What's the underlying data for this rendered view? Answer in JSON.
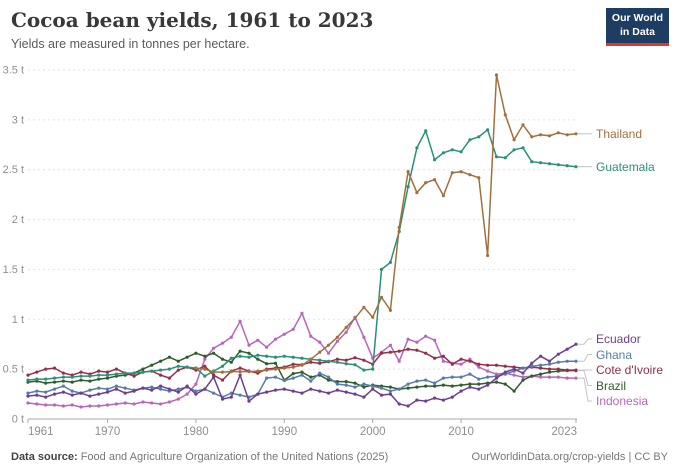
{
  "header": {
    "title": "Cocoa bean yields, 1961 to 2023",
    "subtitle": "Yields are measured in tonnes per hectare."
  },
  "logo": {
    "line1": "Our World",
    "line2": "in Data",
    "bg": "#1d3d63",
    "accent": "#dc392a"
  },
  "footer": {
    "source_label": "Data source:",
    "source_text": " Food and Agriculture Organization of the United Nations (2025)",
    "credit_link": "OurWorldinData.org/crop-yields",
    "credit_rest": " | CC BY"
  },
  "chart_data": {
    "type": "line",
    "title": "Cocoa bean yields, 1961 to 2023",
    "ylabel": "tonnes per hectare",
    "unit": "t",
    "xlim": [
      1961,
      2023
    ],
    "ylim": [
      0,
      3.5
    ],
    "grid": "horizontal-dashed",
    "legend_position": "right",
    "x_ticks": [
      1961,
      1970,
      1980,
      1990,
      2000,
      2010,
      2023
    ],
    "y_ticks": [
      {
        "value": 0,
        "label": "0 t"
      },
      {
        "value": 0.5,
        "label": "0.5 t"
      },
      {
        "value": 1,
        "label": "1 t"
      },
      {
        "value": 1.5,
        "label": "1.5 t"
      },
      {
        "value": 2,
        "label": "2 t"
      },
      {
        "value": 2.5,
        "label": "2.5 t"
      },
      {
        "value": 3,
        "label": "3 t"
      },
      {
        "value": 3.5,
        "label": "3.5 t"
      }
    ],
    "series": [
      {
        "name": "Thailand",
        "color": "#a2703c",
        "start_year": 1980,
        "values": [
          0.51,
          0.5,
          0.47,
          0.47,
          0.475,
          0.475,
          0.475,
          0.48,
          0.49,
          0.5,
          0.51,
          0.52,
          0.54,
          0.6,
          0.67,
          0.74,
          0.82,
          0.92,
          1.01,
          1.12,
          1.02,
          1.22,
          1.09,
          1.92,
          2.48,
          2.27,
          2.37,
          2.4,
          2.24,
          2.47,
          2.48,
          2.45,
          2.42,
          1.64,
          3.45,
          3.05,
          2.8,
          2.95,
          2.83,
          2.85,
          2.84,
          2.87,
          2.85,
          2.86
        ]
      },
      {
        "name": "Guatemala",
        "color": "#2a9179",
        "start_year": 1961,
        "values": [
          0.39,
          0.4,
          0.4,
          0.41,
          0.42,
          0.42,
          0.43,
          0.43,
          0.44,
          0.44,
          0.45,
          0.46,
          0.46,
          0.47,
          0.48,
          0.49,
          0.5,
          0.53,
          0.52,
          0.51,
          0.43,
          0.48,
          0.53,
          0.61,
          0.63,
          0.62,
          0.64,
          0.63,
          0.62,
          0.63,
          0.62,
          0.61,
          0.6,
          0.59,
          0.58,
          0.57,
          0.555,
          0.545,
          0.49,
          0.5,
          1.5,
          1.57,
          1.88,
          2.33,
          2.72,
          2.89,
          2.6,
          2.67,
          2.7,
          2.68,
          2.8,
          2.83,
          2.9,
          2.63,
          2.62,
          2.7,
          2.72,
          2.58,
          2.57,
          2.56,
          2.55,
          2.54,
          2.53
        ]
      },
      {
        "name": "Ecuador",
        "color": "#6d3e91",
        "start_year": 1961,
        "values": [
          0.23,
          0.24,
          0.22,
          0.25,
          0.27,
          0.24,
          0.26,
          0.23,
          0.25,
          0.27,
          0.3,
          0.26,
          0.28,
          0.31,
          0.29,
          0.33,
          0.3,
          0.27,
          0.33,
          0.25,
          0.3,
          0.42,
          0.2,
          0.22,
          0.44,
          0.18,
          0.25,
          0.27,
          0.29,
          0.3,
          0.28,
          0.26,
          0.3,
          0.28,
          0.26,
          0.29,
          0.27,
          0.25,
          0.22,
          0.3,
          0.24,
          0.25,
          0.15,
          0.13,
          0.19,
          0.18,
          0.21,
          0.19,
          0.22,
          0.28,
          0.32,
          0.3,
          0.34,
          0.41,
          0.47,
          0.5,
          0.46,
          0.56,
          0.63,
          0.58,
          0.65,
          0.7,
          0.75
        ]
      },
      {
        "name": "Ghana",
        "color": "#577ca9",
        "start_year": 1961,
        "values": [
          0.26,
          0.28,
          0.27,
          0.3,
          0.33,
          0.28,
          0.26,
          0.29,
          0.31,
          0.3,
          0.33,
          0.31,
          0.29,
          0.31,
          0.32,
          0.3,
          0.28,
          0.3,
          0.32,
          0.28,
          0.3,
          0.26,
          0.22,
          0.26,
          0.24,
          0.22,
          0.25,
          0.41,
          0.42,
          0.385,
          0.41,
          0.44,
          0.38,
          0.46,
          0.42,
          0.35,
          0.34,
          0.32,
          0.35,
          0.33,
          0.31,
          0.28,
          0.3,
          0.35,
          0.38,
          0.39,
          0.36,
          0.41,
          0.42,
          0.42,
          0.45,
          0.4,
          0.42,
          0.43,
          0.45,
          0.48,
          0.51,
          0.53,
          0.54,
          0.55,
          0.57,
          0.58,
          0.58
        ]
      },
      {
        "name": "Cote d'Ivoire",
        "color": "#952e48",
        "start_year": 1961,
        "values": [
          0.44,
          0.47,
          0.5,
          0.51,
          0.46,
          0.44,
          0.47,
          0.45,
          0.48,
          0.47,
          0.5,
          0.46,
          0.43,
          0.47,
          0.48,
          0.44,
          0.41,
          0.49,
          0.52,
          0.49,
          0.53,
          0.44,
          0.39,
          0.48,
          0.51,
          0.48,
          0.46,
          0.5,
          0.51,
          0.52,
          0.55,
          0.545,
          0.57,
          0.56,
          0.575,
          0.6,
          0.59,
          0.615,
          0.59,
          0.55,
          0.66,
          0.67,
          0.68,
          0.7,
          0.69,
          0.66,
          0.61,
          0.63,
          0.55,
          0.6,
          0.58,
          0.55,
          0.54,
          0.54,
          0.53,
          0.52,
          0.51,
          0.52,
          0.51,
          0.5,
          0.5,
          0.49,
          0.49
        ]
      },
      {
        "name": "Brazil",
        "color": "#2e5e2b",
        "start_year": 1961,
        "values": [
          0.37,
          0.38,
          0.36,
          0.37,
          0.38,
          0.37,
          0.39,
          0.38,
          0.4,
          0.41,
          0.43,
          0.44,
          0.46,
          0.5,
          0.54,
          0.58,
          0.62,
          0.58,
          0.62,
          0.66,
          0.63,
          0.66,
          0.6,
          0.57,
          0.68,
          0.66,
          0.6,
          0.555,
          0.56,
          0.39,
          0.455,
          0.47,
          0.42,
          0.44,
          0.39,
          0.375,
          0.375,
          0.36,
          0.32,
          0.34,
          0.33,
          0.32,
          0.3,
          0.31,
          0.32,
          0.33,
          0.33,
          0.34,
          0.33,
          0.34,
          0.35,
          0.35,
          0.36,
          0.37,
          0.35,
          0.28,
          0.39,
          0.43,
          0.45,
          0.47,
          0.48,
          0.485,
          0.485
        ]
      },
      {
        "name": "Indonesia",
        "color": "#b965bd",
        "start_year": 1961,
        "values": [
          0.16,
          0.15,
          0.14,
          0.14,
          0.13,
          0.14,
          0.12,
          0.13,
          0.13,
          0.14,
          0.15,
          0.16,
          0.15,
          0.17,
          0.16,
          0.15,
          0.17,
          0.2,
          0.25,
          0.35,
          0.6,
          0.71,
          0.76,
          0.82,
          0.98,
          0.74,
          0.79,
          0.72,
          0.8,
          0.85,
          0.9,
          1.06,
          0.83,
          0.77,
          0.66,
          0.78,
          0.87,
          1.02,
          0.82,
          0.61,
          0.67,
          0.74,
          0.58,
          0.8,
          0.77,
          0.83,
          0.79,
          0.58,
          0.56,
          0.55,
          0.6,
          0.52,
          0.48,
          0.45,
          0.46,
          0.44,
          0.42,
          0.43,
          0.42,
          0.42,
          0.42,
          0.41,
          0.41
        ]
      }
    ]
  }
}
